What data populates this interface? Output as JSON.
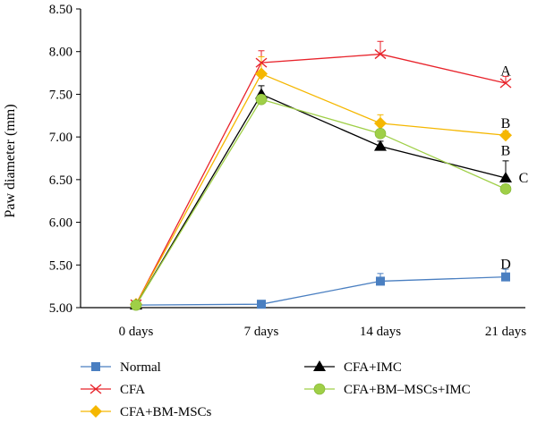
{
  "chart_data": {
    "type": "line",
    "title": "",
    "xlabel": "",
    "ylabel": "Paw diameter (mm)",
    "categories": [
      "0 days",
      "7 days",
      "14 days",
      "21 days"
    ],
    "ylim": [
      5.0,
      8.5
    ],
    "yticks": [
      "5.00",
      "5.50",
      "6.00",
      "6.50",
      "7.00",
      "7.50",
      "8.00",
      "8.50"
    ],
    "grid": false,
    "legend_position": "bottom",
    "series": [
      {
        "name": "Normal",
        "color": "#4a7fc1",
        "marker": "square",
        "values": [
          5.03,
          5.04,
          5.31,
          5.36
        ],
        "errors": [
          0,
          0,
          0.09,
          0.09
        ]
      },
      {
        "name": "CFA",
        "color": "#e8232b",
        "marker": "x",
        "values": [
          5.04,
          7.87,
          7.97,
          7.63
        ],
        "errors": [
          0,
          0.14,
          0.15,
          0.08
        ]
      },
      {
        "name": "CFA+BM-MSCs",
        "color": "#f5b700",
        "marker": "diamond",
        "values": [
          5.04,
          7.74,
          7.16,
          7.02
        ],
        "errors": [
          0,
          0.2,
          0.1,
          0.05
        ]
      },
      {
        "name": "CFA+IMC",
        "color": "#000000",
        "marker": "triangle",
        "values": [
          5.03,
          7.5,
          6.89,
          6.52
        ],
        "errors": [
          0,
          0.1,
          0.06,
          0.2
        ]
      },
      {
        "name": "CFA+BM–MSCs+IMC",
        "color": "#9fcf47",
        "marker": "circle",
        "values": [
          5.03,
          7.44,
          7.04,
          6.39
        ],
        "errors": [
          0,
          0,
          0,
          0
        ]
      }
    ],
    "annotations": [
      {
        "text": "A",
        "category": "21 days",
        "value": 7.78
      },
      {
        "text": "B",
        "category": "21 days",
        "value": 7.17
      },
      {
        "text": "B",
        "category": "21 days",
        "value": 6.85
      },
      {
        "text": "C",
        "category": "21 days",
        "value": 6.53
      },
      {
        "text": "D",
        "category": "21 days",
        "value": 5.52
      }
    ]
  }
}
